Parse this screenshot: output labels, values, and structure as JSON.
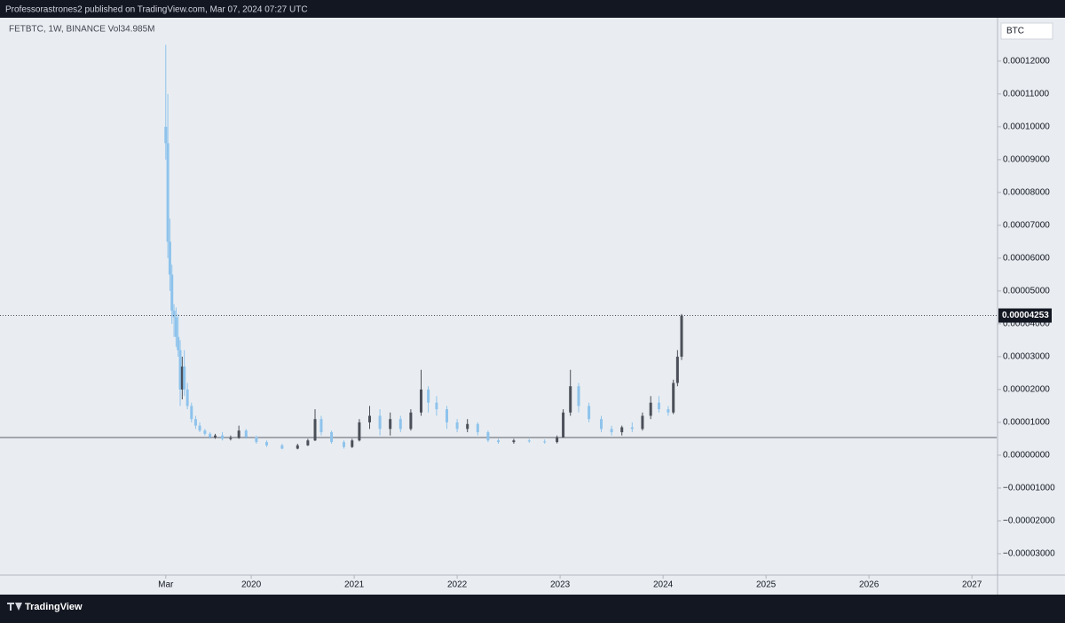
{
  "header": {
    "text": "Professorastrones2 published on TradingView.com, Mar 07, 2024 07:27 UTC"
  },
  "footer": {
    "brand": "TradingView"
  },
  "chart_data": {
    "type": "candlestick",
    "legend": "FETBTC, 1W, BINANCE  Vol34.985M",
    "currency": "BTC",
    "up_color": "#4b4f58",
    "down_color": "#8ec3ec",
    "x": [
      2019.17,
      2019.19,
      2019.21,
      2019.23,
      2019.25,
      2019.27,
      2019.29,
      2019.31,
      2019.33,
      2019.35,
      2019.38,
      2019.42,
      2019.46,
      2019.5,
      2019.55,
      2019.6,
      2019.65,
      2019.72,
      2019.8,
      2019.88,
      2019.95,
      2020.05,
      2020.15,
      2020.3,
      2020.45,
      2020.55,
      2020.62,
      2020.68,
      2020.78,
      2020.9,
      2020.98,
      2021.05,
      2021.15,
      2021.25,
      2021.35,
      2021.45,
      2021.55,
      2021.65,
      2021.72,
      2021.8,
      2021.9,
      2022.0,
      2022.1,
      2022.2,
      2022.3,
      2022.4,
      2022.55,
      2022.7,
      2022.85,
      2022.97,
      2023.03,
      2023.1,
      2023.18,
      2023.28,
      2023.4,
      2023.5,
      2023.6,
      2023.7,
      2023.8,
      2023.88,
      2023.96,
      2024.05,
      2024.1,
      2024.14,
      2024.18
    ],
    "open": [
      0.0001,
      9.5e-05,
      6.5e-05,
      5.5e-05,
      4.4e-05,
      4.2e-05,
      3.6e-05,
      3.2e-05,
      2e-05,
      2.7e-05,
      2e-05,
      1.5e-05,
      1.1e-05,
      9e-06,
      7.5e-06,
      6.5e-06,
      5.5e-06,
      6e-06,
      5e-06,
      5.2e-06,
      7.5e-06,
      5.5e-06,
      4e-06,
      3e-06,
      2e-06,
      3e-06,
      4.5e-06,
      1.1e-05,
      7e-06,
      4e-06,
      2.5e-06,
      4.5e-06,
      1e-05,
      1.2e-05,
      8e-06,
      1.1e-05,
      8e-06,
      1.3e-05,
      2e-05,
      1.6e-05,
      1.4e-05,
      1e-05,
      8e-06,
      9.5e-06,
      7e-06,
      4.5e-06,
      4e-06,
      4.5e-06,
      4.2e-06,
      4e-06,
      5.5e-06,
      1.3e-05,
      2.1e-05,
      1.5e-05,
      1.1e-05,
      8e-06,
      7e-06,
      8.5e-06,
      8e-06,
      1.2e-05,
      1.6e-05,
      1.4e-05,
      1.3e-05,
      2.2e-05,
      3e-05
    ],
    "high": [
      0.000125,
      0.00011,
      7.2e-05,
      5.8e-05,
      4.6e-05,
      4.5e-05,
      4.3e-05,
      3.5e-05,
      3e-05,
      3.2e-05,
      2.2e-05,
      1.6e-05,
      1.2e-05,
      1e-05,
      8e-06,
      7e-06,
      6.5e-06,
      7e-06,
      6e-06,
      9e-06,
      8e-06,
      6e-06,
      4.5e-06,
      3.5e-06,
      3.5e-06,
      5e-06,
      1.4e-05,
      1.2e-05,
      7.5e-06,
      4.5e-06,
      5e-06,
      1.1e-05,
      1.5e-05,
      1.4e-05,
      1.3e-05,
      1.2e-05,
      1.4e-05,
      2.6e-05,
      2.1e-05,
      1.8e-05,
      1.5e-05,
      1.1e-05,
      1.1e-05,
      1e-05,
      7.5e-06,
      5e-06,
      5e-06,
      5e-06,
      4.8e-06,
      6e-06,
      1.4e-05,
      2.6e-05,
      2.2e-05,
      1.6e-05,
      1.2e-05,
      9e-06,
      9e-06,
      1e-05,
      1.3e-05,
      1.8e-05,
      1.8e-05,
      1.5e-05,
      2.3e-05,
      3.2e-05,
      4.3e-05
    ],
    "low": [
      9e-05,
      6e-05,
      5e-05,
      4e-05,
      3.6e-05,
      3.3e-05,
      3e-05,
      1.5e-05,
      1.7e-05,
      1.8e-05,
      1.4e-05,
      1e-05,
      8e-06,
      7e-06,
      6e-06,
      5e-06,
      5e-06,
      4.5e-06,
      4.5e-06,
      5e-06,
      5e-06,
      3.5e-06,
      2.5e-06,
      1.8e-06,
      1.8e-06,
      2.8e-06,
      4.3e-06,
      6e-06,
      3.5e-06,
      2e-06,
      2.2e-06,
      4.2e-06,
      8e-06,
      6e-06,
      6e-06,
      7e-06,
      7.5e-06,
      1.2e-05,
      1.3e-05,
      1.2e-05,
      8e-06,
      7e-06,
      7e-06,
      6e-06,
      4e-06,
      3.5e-06,
      3.5e-06,
      3.8e-06,
      3.5e-06,
      3.6e-06,
      5.3e-06,
      1.2e-05,
      1.3e-05,
      1e-05,
      7e-06,
      6e-06,
      6e-06,
      7e-06,
      7.5e-06,
      1.1e-05,
      1.3e-05,
      1.2e-05,
      1.25e-05,
      2.1e-05,
      2.9e-05
    ],
    "close": [
      9.5e-05,
      6.5e-05,
      5.5e-05,
      4.4e-05,
      4.2e-05,
      3.6e-05,
      3.2e-05,
      2e-05,
      2.7e-05,
      2e-05,
      1.5e-05,
      1.1e-05,
      9e-06,
      7.5e-06,
      6.5e-06,
      5.5e-06,
      6e-06,
      5e-06,
      5.2e-06,
      7.5e-06,
      5.5e-06,
      4e-06,
      3e-06,
      2e-06,
      3e-06,
      4.5e-06,
      1.1e-05,
      7e-06,
      4e-06,
      2.5e-06,
      4.5e-06,
      1e-05,
      1.2e-05,
      8e-06,
      1.1e-05,
      8e-06,
      1.3e-05,
      2e-05,
      1.6e-05,
      1.4e-05,
      1e-05,
      8e-06,
      9.5e-06,
      7e-06,
      4.5e-06,
      4e-06,
      4.5e-06,
      4.2e-06,
      4e-06,
      5.5e-06,
      1.3e-05,
      2.1e-05,
      1.5e-05,
      1.1e-05,
      8e-06,
      7e-06,
      8.5e-06,
      8e-06,
      1.2e-05,
      1.6e-05,
      1.4e-05,
      1.3e-05,
      2.2e-05,
      3e-05,
      4.253e-05
    ],
    "last_price": {
      "value": 4.253e-05,
      "label": "0.00004253"
    },
    "hline": 5.4e-06,
    "xlim": [
      2017.56,
      2027.24
    ],
    "xticks": [
      {
        "value": 2019.17,
        "label": "Mar"
      },
      2020,
      2021,
      2022,
      2023,
      2024,
      2025,
      2026,
      2027
    ],
    "ylim": [
      -3.65e-05,
      0.0001332
    ],
    "yticks": [
      {
        "value": 0.00012,
        "label": "0.00012000"
      },
      {
        "value": 0.00011,
        "label": "0.00011000"
      },
      {
        "value": 0.0001,
        "label": "0.00010000"
      },
      {
        "value": 9e-05,
        "label": "0.00009000"
      },
      {
        "value": 8e-05,
        "label": "0.00008000"
      },
      {
        "value": 7e-05,
        "label": "0.00007000"
      },
      {
        "value": 6e-05,
        "label": "0.00006000"
      },
      {
        "value": 5e-05,
        "label": "0.00005000"
      },
      {
        "value": 4e-05,
        "label": "0.00004000"
      },
      {
        "value": 3e-05,
        "label": "0.00003000"
      },
      {
        "value": 2e-05,
        "label": "0.00002000"
      },
      {
        "value": 1e-05,
        "label": "0.00001000"
      },
      {
        "value": 0,
        "label": "0.00000000"
      },
      {
        "value": -1e-05,
        "label": "−0.00001000"
      },
      {
        "value": -2e-05,
        "label": "−0.00002000"
      },
      {
        "value": -3e-05,
        "label": "−0.00003000"
      }
    ]
  }
}
